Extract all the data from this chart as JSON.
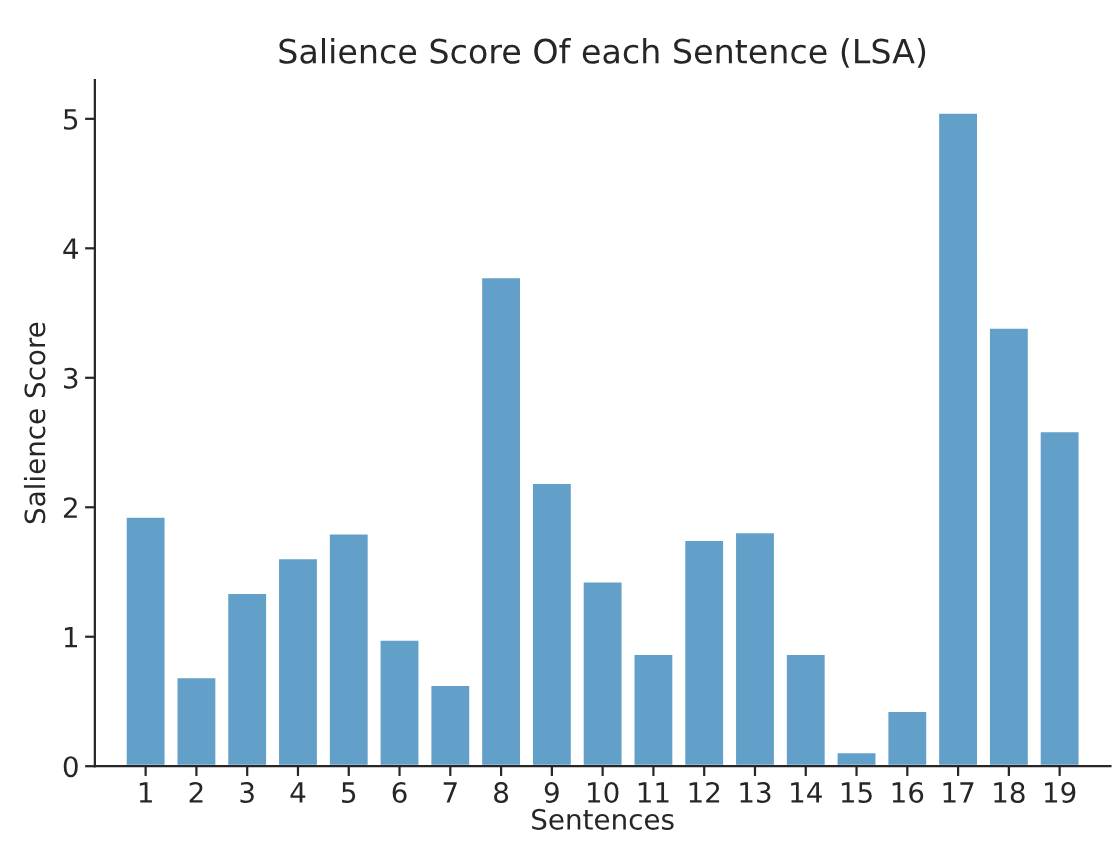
{
  "chart_data": {
    "type": "bar",
    "title": "Salience Score Of each Sentence (LSA)",
    "xlabel": "Sentences",
    "ylabel": "Salience Score",
    "categories": [
      "1",
      "2",
      "3",
      "4",
      "5",
      "6",
      "7",
      "8",
      "9",
      "10",
      "11",
      "12",
      "13",
      "14",
      "15",
      "16",
      "17",
      "18",
      "19"
    ],
    "values": [
      1.93,
      0.69,
      1.34,
      1.61,
      1.8,
      0.98,
      0.63,
      3.78,
      2.19,
      1.43,
      0.87,
      1.75,
      1.81,
      0.87,
      0.11,
      0.43,
      5.05,
      3.39,
      2.59
    ],
    "color": "#62a0ca",
    "ylim": [
      0,
      5.3
    ],
    "yticks": [
      0,
      1,
      2,
      3,
      4,
      5
    ],
    "grid": false,
    "legend": false
  }
}
